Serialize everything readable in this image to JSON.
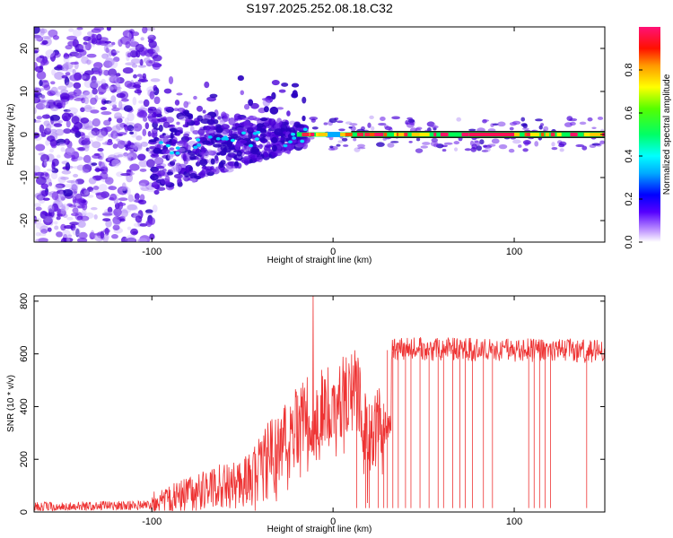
{
  "chart_data": [
    {
      "type": "heatmap",
      "title": "S197.2025.252.08.18.C32",
      "xlabel": "Height of straight line (km)",
      "ylabel": "Frequency (Hz)",
      "xlim": [
        -165,
        150
      ],
      "ylim": [
        -25,
        25
      ],
      "xticks": [
        -100,
        0,
        100
      ],
      "yticks": [
        -20,
        -10,
        0,
        10,
        20
      ],
      "colorbar": {
        "label": "Normalized spectral amplitude",
        "range": [
          0,
          1
        ],
        "ticks": [
          "0.0",
          "0.2",
          "0.4",
          "0.6",
          "0.8"
        ],
        "tick_values": [
          0.0,
          0.2,
          0.4,
          0.6,
          0.8
        ]
      },
      "tone_frequency_hz": 0,
      "tone_start_km": -20,
      "tone_end_km": 150
    },
    {
      "type": "line",
      "xlabel": "Height of straight line (km)",
      "ylabel": "SNR (10 * v/v)",
      "xlim": [
        -165,
        150
      ],
      "ylim": [
        0,
        820
      ],
      "xticks": [
        -100,
        0,
        100
      ],
      "yticks": [
        0,
        200,
        400,
        600,
        800
      ],
      "series_color": "#ee3333",
      "segments": [
        {
          "x_start": -165,
          "x_end": -100,
          "snr_start": 20,
          "snr_end": 25
        },
        {
          "x_start": -100,
          "x_end": -45,
          "snr_start": 30,
          "snr_end": 120
        },
        {
          "x_start": -45,
          "x_end": -20,
          "snr_start": 120,
          "snr_end": 330
        },
        {
          "x_start": -20,
          "x_end": 15,
          "snr_start": 330,
          "snr_end": 470
        },
        {
          "x_start": 15,
          "x_end": 32,
          "snr_start": 300,
          "snr_end": 330
        },
        {
          "x_start": 32,
          "x_end": 150,
          "snr_start": 620,
          "snr_end": 610
        }
      ],
      "peak": {
        "x": -11,
        "snr": 820
      },
      "dropouts_km": [
        13,
        18,
        20,
        25,
        28,
        30,
        33,
        36,
        40,
        43,
        48,
        53,
        58,
        61,
        66,
        70,
        73,
        77,
        83,
        88,
        108,
        111,
        114,
        117,
        120,
        140
      ]
    }
  ]
}
